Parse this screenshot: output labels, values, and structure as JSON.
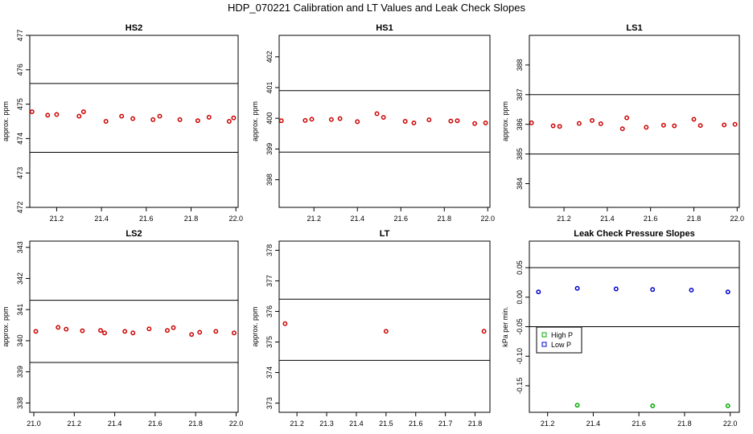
{
  "page": {
    "title": "HDP_070221 Calibration and LT Values and Leak Check Slopes"
  },
  "chart_data": [
    {
      "type": "scatter",
      "title": "HS2",
      "ylabel": "approx. ppm",
      "xlim": [
        21.08,
        22.01
      ],
      "ylim": [
        472,
        477
      ],
      "xticks": [
        "21.2",
        "21.4",
        "21.6",
        "21.8",
        "22.0"
      ],
      "xtick_values": [
        21.2,
        21.4,
        21.6,
        21.8,
        22.0
      ],
      "yticks": [
        "472",
        "473",
        "474",
        "475",
        "476",
        "477"
      ],
      "ytick_values": [
        472,
        473,
        474,
        475,
        476,
        477
      ],
      "hlines": [
        475.6,
        473.6
      ],
      "series": [
        {
          "color": "#cc0000",
          "x": [
            21.09,
            21.16,
            21.2,
            21.3,
            21.32,
            21.42,
            21.49,
            21.54,
            21.63,
            21.66,
            21.75,
            21.83,
            21.88,
            21.97,
            21.99
          ],
          "y": [
            474.78,
            474.68,
            474.7,
            474.65,
            474.78,
            474.5,
            474.65,
            474.58,
            474.55,
            474.65,
            474.55,
            474.52,
            474.62,
            474.5,
            474.6
          ]
        }
      ]
    },
    {
      "type": "scatter",
      "title": "HS1",
      "ylabel": "approx. ppm",
      "xlim": [
        21.04,
        22.01
      ],
      "ylim": [
        397.1,
        402.7
      ],
      "xticks": [
        "21.2",
        "21.4",
        "21.6",
        "21.8",
        "22.0"
      ],
      "xtick_values": [
        21.2,
        21.4,
        21.6,
        21.8,
        22.0
      ],
      "yticks": [
        "398",
        "399",
        "400",
        "401",
        "402"
      ],
      "ytick_values": [
        398,
        399,
        400,
        401,
        402
      ],
      "hlines": [
        400.9,
        398.9
      ],
      "series": [
        {
          "color": "#cc0000",
          "x": [
            21.05,
            21.16,
            21.19,
            21.28,
            21.32,
            21.4,
            21.49,
            21.52,
            21.62,
            21.66,
            21.73,
            21.83,
            21.86,
            21.94,
            21.99
          ],
          "y": [
            399.92,
            399.93,
            399.97,
            399.96,
            399.99,
            399.89,
            400.15,
            400.03,
            399.9,
            399.85,
            399.95,
            399.91,
            399.92,
            399.83,
            399.85
          ]
        }
      ]
    },
    {
      "type": "scatter",
      "title": "LS1",
      "ylabel": "approx. ppm",
      "xlim": [
        21.04,
        22.01
      ],
      "ylim": [
        383.2,
        389
      ],
      "xticks": [
        "21.2",
        "21.4",
        "21.6",
        "21.8",
        "22.0"
      ],
      "xtick_values": [
        21.2,
        21.4,
        21.6,
        21.8,
        22.0
      ],
      "yticks": [
        "384",
        "385",
        "386",
        "387",
        "388"
      ],
      "ytick_values": [
        384,
        385,
        386,
        387,
        388
      ],
      "hlines": [
        387,
        385
      ],
      "series": [
        {
          "color": "#cc0000",
          "x": [
            21.05,
            21.15,
            21.18,
            21.27,
            21.33,
            21.37,
            21.47,
            21.49,
            21.58,
            21.66,
            21.71,
            21.8,
            21.83,
            21.94,
            21.99
          ],
          "y": [
            386.05,
            385.95,
            385.93,
            386.03,
            386.13,
            386.02,
            385.85,
            386.22,
            385.9,
            385.97,
            385.95,
            386.17,
            385.96,
            385.98,
            386.0
          ]
        }
      ]
    },
    {
      "type": "scatter",
      "title": "LS2",
      "ylabel": "approx. ppm",
      "xlim": [
        20.98,
        22.01
      ],
      "ylim": [
        337.7,
        343.2
      ],
      "xticks": [
        "21.0",
        "21.2",
        "21.4",
        "21.6",
        "21.8",
        "22.0"
      ],
      "xtick_values": [
        21.0,
        21.2,
        21.4,
        21.6,
        21.8,
        22.0
      ],
      "yticks": [
        "338",
        "339",
        "340",
        "341",
        "342",
        "343"
      ],
      "ytick_values": [
        338,
        339,
        340,
        341,
        342,
        343
      ],
      "hlines": [
        341.3,
        339.3
      ],
      "series": [
        {
          "color": "#cc0000",
          "x": [
            21.01,
            21.12,
            21.16,
            21.24,
            21.33,
            21.35,
            21.45,
            21.49,
            21.57,
            21.66,
            21.69,
            21.78,
            21.82,
            21.9,
            21.99
          ],
          "y": [
            340.3,
            340.43,
            340.37,
            340.32,
            340.33,
            340.25,
            340.3,
            340.25,
            340.38,
            340.33,
            340.42,
            340.2,
            340.27,
            340.3,
            340.25
          ]
        }
      ]
    },
    {
      "type": "scatter",
      "title": "LT",
      "ylabel": "approx. ppm",
      "xlim": [
        21.14,
        21.85
      ],
      "ylim": [
        372.7,
        378.3
      ],
      "xticks": [
        "21.2",
        "21.3",
        "21.4",
        "21.5",
        "21.6",
        "21.7",
        "21.8"
      ],
      "xtick_values": [
        21.2,
        21.3,
        21.4,
        21.5,
        21.6,
        21.7,
        21.8
      ],
      "yticks": [
        "373",
        "374",
        "375",
        "376",
        "377",
        "378"
      ],
      "ytick_values": [
        373,
        374,
        375,
        376,
        377,
        378
      ],
      "hlines": [
        376.4,
        374.4
      ],
      "series": [
        {
          "color": "#cc0000",
          "x": [
            21.16,
            21.5,
            21.83
          ],
          "y": [
            375.6,
            375.35,
            375.35
          ]
        }
      ]
    },
    {
      "type": "scatter",
      "title": "Leak Check Pressure Slopes",
      "ylabel": "kPa per min.",
      "xlim": [
        21.12,
        22.04
      ],
      "ylim": [
        -0.195,
        0.095
      ],
      "xticks": [
        "21.2",
        "21.4",
        "21.6",
        "21.8",
        "22.0"
      ],
      "xtick_values": [
        21.2,
        21.4,
        21.6,
        21.8,
        22.0
      ],
      "yticks": [
        "-0.15",
        "-0.10",
        "-0.05",
        "0.00",
        "0.05"
      ],
      "ytick_values": [
        -0.15,
        -0.1,
        -0.05,
        0.0,
        0.05
      ],
      "hlines": [
        0.05,
        -0.05
      ],
      "legend": {
        "position": "middle-left",
        "entries": [
          {
            "label": "High P",
            "color": "#00aa00"
          },
          {
            "label": "Low P",
            "color": "#0000cc"
          }
        ]
      },
      "series": [
        {
          "name": "High P",
          "color": "#00aa00",
          "x": [
            21.33,
            21.66,
            21.99
          ],
          "y": [
            -0.183,
            -0.184,
            -0.184
          ]
        },
        {
          "name": "Low P",
          "color": "#0000cc",
          "x": [
            21.16,
            21.33,
            21.5,
            21.66,
            21.83,
            21.99
          ],
          "y": [
            0.009,
            0.015,
            0.014,
            0.013,
            0.012,
            0.009
          ]
        }
      ]
    }
  ]
}
